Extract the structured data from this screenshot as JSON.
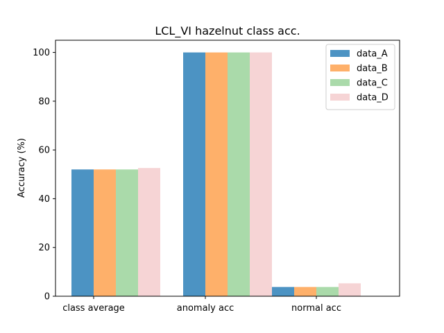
{
  "chart_data": {
    "type": "bar",
    "title": "LCL_VI hazelnut class acc.",
    "xlabel": "",
    "ylabel": "Accuracy (%)",
    "categories": [
      "class average",
      "anomaly acc",
      "normal acc"
    ],
    "ylim": [
      0,
      105
    ],
    "yticks": [
      0,
      20,
      40,
      60,
      80,
      100
    ],
    "grid": false,
    "legend_position": "top-right",
    "series": [
      {
        "name": "data_A",
        "color": "#4c93c3",
        "values": [
          52.0,
          100,
          3.8
        ]
      },
      {
        "name": "data_B",
        "color": "#feb06a",
        "values": [
          52.0,
          100,
          3.8
        ]
      },
      {
        "name": "data_C",
        "color": "#aadaaa",
        "values": [
          52.0,
          100,
          3.8
        ]
      },
      {
        "name": "data_D",
        "color": "#f6d4d5",
        "values": [
          52.6,
          100,
          5.3
        ]
      }
    ]
  }
}
